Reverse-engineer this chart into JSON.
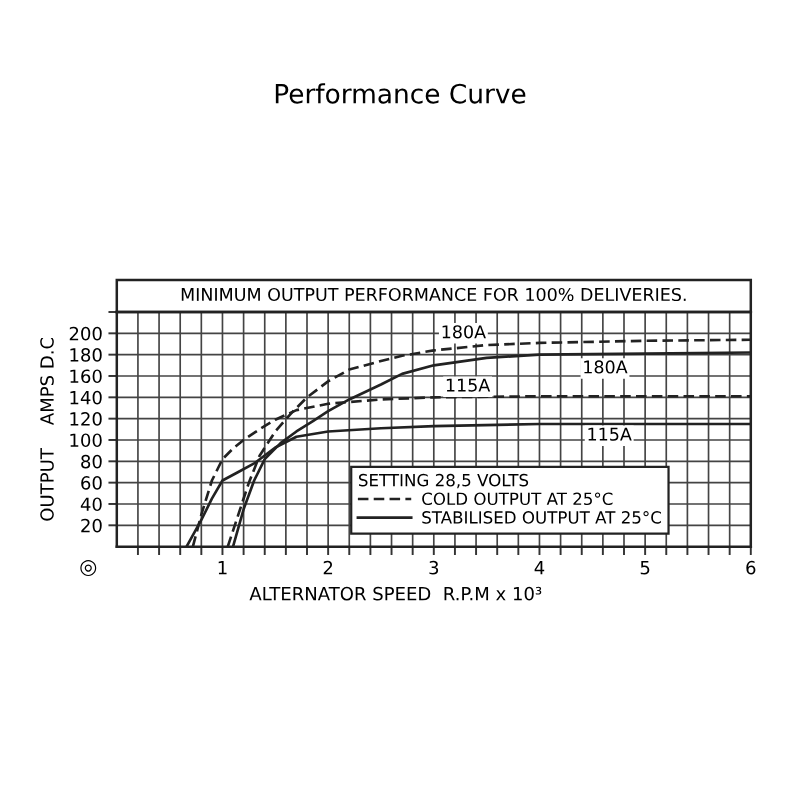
{
  "chart_data": {
    "type": "line",
    "title": "Performance Curve",
    "subtitle": "MINIMUM OUTPUT PERFORMANCE FOR 100% DELIVERIES.",
    "xlabel": "ALTERNATOR SPEED  R.P.M x 10³",
    "ylabel": "OUTPUT    AMPS D.C",
    "legend_title": "SETTING 28,5 VOLTS",
    "xlim": [
      0,
      6
    ],
    "ylim": [
      0,
      220
    ],
    "xticks": [
      {
        "value": 0.2,
        "label": null
      },
      {
        "value": 0.4,
        "label": null
      },
      {
        "value": 0.6,
        "label": null
      },
      {
        "value": 0.8,
        "label": null
      },
      1,
      {
        "value": 1.2,
        "label": null
      },
      {
        "value": 1.4,
        "label": null
      },
      {
        "value": 1.6,
        "label": null
      },
      {
        "value": 1.8,
        "label": null
      },
      2,
      {
        "value": 2.2,
        "label": null
      },
      {
        "value": 2.4,
        "label": null
      },
      {
        "value": 2.6,
        "label": null
      },
      {
        "value": 2.8,
        "label": null
      },
      3,
      {
        "value": 3.2,
        "label": null
      },
      {
        "value": 3.4,
        "label": null
      },
      {
        "value": 3.6,
        "label": null
      },
      {
        "value": 3.8,
        "label": null
      },
      4,
      {
        "value": 4.2,
        "label": null
      },
      {
        "value": 4.4,
        "label": null
      },
      {
        "value": 4.6,
        "label": null
      },
      {
        "value": 4.8,
        "label": null
      },
      5,
      {
        "value": 5.2,
        "label": null
      },
      {
        "value": 5.4,
        "label": null
      },
      {
        "value": 5.6,
        "label": null
      },
      {
        "value": 5.8,
        "label": null
      },
      6
    ],
    "yticks": [
      20,
      40,
      60,
      80,
      100,
      120,
      140,
      160,
      180,
      200,
      {
        "value": 220,
        "label": null
      }
    ],
    "grid": true,
    "legend": "bottom",
    "series": [
      {
        "name": "COLD OUTPUT AT 25°C",
        "color": "#222222",
        "line_style": "dashed",
        "x": [
          1.05,
          1.15,
          1.25,
          1.35,
          1.5,
          1.65,
          1.8,
          2.0,
          2.2,
          2.5,
          2.7,
          3.0,
          3.5,
          4.0,
          5.0,
          6.0
        ],
        "values": [
          0,
          30,
          60,
          85,
          108,
          125,
          140,
          155,
          166,
          174,
          179,
          184,
          189,
          191,
          193,
          194
        ]
      },
      {
        "name": "STABILISED OUTPUT AT 25°C",
        "color": "#222222",
        "line_style": "solid",
        "x": [
          1.1,
          1.2,
          1.3,
          1.4,
          1.55,
          1.7,
          1.86,
          2.0,
          2.2,
          2.5,
          2.7,
          3.0,
          3.5,
          4.0,
          5.0,
          6.0
        ],
        "values": [
          0,
          35,
          62,
          82,
          97,
          108,
          118,
          127,
          138,
          152,
          162,
          170,
          177,
          180,
          181,
          182
        ]
      },
      {
        "color": "#222222",
        "line_style": "dashed",
        "x": [
          0.72,
          0.8,
          0.9,
          1.0,
          1.1,
          1.2,
          1.35,
          1.5,
          1.7,
          2.0,
          2.5,
          3.0,
          4.0,
          5.0,
          6.0
        ],
        "values": [
          0,
          30,
          62,
          82,
          92,
          100,
          110,
          119,
          128,
          134,
          138,
          140,
          141,
          141,
          141
        ]
      },
      {
        "color": "#222222",
        "line_style": "solid",
        "x": [
          0.66,
          0.8,
          0.9,
          1.0,
          1.15,
          1.3,
          1.5,
          1.7,
          2.0,
          2.5,
          3.0,
          4.0,
          5.0,
          6.0
        ],
        "values": [
          0,
          25,
          45,
          62,
          70,
          78,
          93,
          103,
          108,
          111,
          113,
          115,
          115,
          115
        ]
      }
    ],
    "annotations": [
      {
        "text": "180A",
        "x": 3.28,
        "y": 200
      },
      {
        "text": "180A",
        "x": 4.62,
        "y": 167
      },
      {
        "text": "115A",
        "x": 3.32,
        "y": 150
      },
      {
        "text": "115A",
        "x": 4.66,
        "y": 104
      },
      "◎"
    ]
  }
}
